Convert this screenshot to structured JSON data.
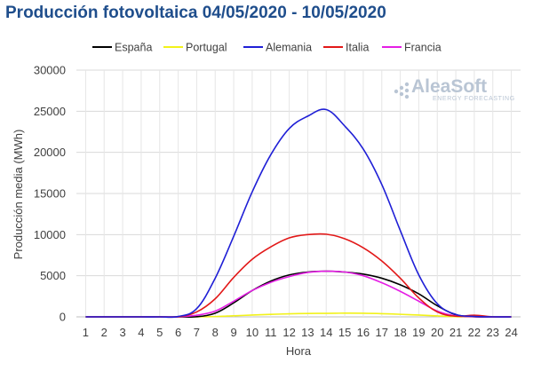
{
  "chart_data": {
    "type": "line",
    "title": "Producción fotovoltaica 04/05/2020 - 10/05/2020",
    "xlabel": "Hora",
    "ylabel": "Producción media (MWh)",
    "ylim": [
      0,
      30000
    ],
    "yticks": [
      "0",
      "5000",
      "10000",
      "15000",
      "20000",
      "25000",
      "30000"
    ],
    "x": [
      1,
      2,
      3,
      4,
      5,
      6,
      7,
      8,
      9,
      10,
      11,
      12,
      13,
      14,
      15,
      16,
      17,
      18,
      19,
      20,
      21,
      22,
      23,
      24
    ],
    "legend_position": "top",
    "grid": true,
    "series": [
      {
        "name": "España",
        "color": "#000000",
        "values": [
          0,
          0,
          0,
          0,
          0,
          0,
          20,
          450,
          1700,
          3200,
          4350,
          5100,
          5450,
          5550,
          5450,
          5200,
          4700,
          3900,
          2800,
          1350,
          250,
          20,
          0,
          0
        ]
      },
      {
        "name": "Portugal",
        "color": "#f2f21a",
        "values": [
          0,
          0,
          0,
          0,
          0,
          0,
          5,
          40,
          130,
          220,
          300,
          370,
          410,
          430,
          450,
          440,
          390,
          310,
          220,
          110,
          25,
          0,
          0,
          0
        ]
      },
      {
        "name": "Alemania",
        "color": "#1f1fd6",
        "values": [
          0,
          0,
          0,
          0,
          0,
          50,
          1000,
          4700,
          9800,
          15200,
          19700,
          22900,
          24400,
          25200,
          23200,
          20400,
          16100,
          10500,
          5100,
          1600,
          300,
          50,
          0,
          0
        ]
      },
      {
        "name": "Italia",
        "color": "#e21818",
        "values": [
          0,
          0,
          0,
          0,
          0,
          20,
          600,
          2200,
          4800,
          7000,
          8500,
          9600,
          10000,
          10050,
          9500,
          8400,
          6800,
          4700,
          2300,
          600,
          80,
          200,
          0,
          0
        ]
      },
      {
        "name": "Francia",
        "color": "#e51ee5",
        "values": [
          0,
          0,
          0,
          0,
          0,
          10,
          200,
          700,
          1900,
          3200,
          4200,
          4900,
          5400,
          5550,
          5450,
          5000,
          4150,
          3100,
          1900,
          700,
          120,
          20,
          0,
          0
        ]
      }
    ]
  },
  "logo": {
    "name": "AleaSoft",
    "tagline": "ENERGY FORECASTING"
  }
}
